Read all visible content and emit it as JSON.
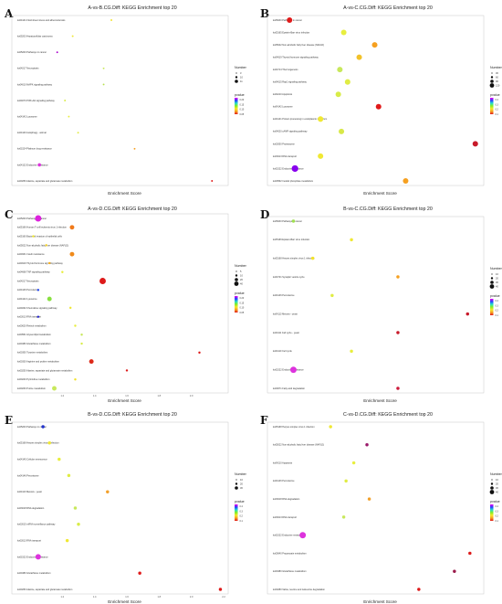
{
  "chart_data": [
    {
      "type": "scatter",
      "panel": "A",
      "title": "A-vs-B.CG.Diff: KEGG Enrichment top 20",
      "xlabel": "Enrichment Score",
      "xlim": [
        0.5,
        3.0
      ],
      "x_ticks": [],
      "legend": {
        "size_title": "Number",
        "size_values": [
          "3",
          "10",
          "11"
        ],
        "color_title": "pvalue",
        "color_ticks": [
          "0.20",
          "0.15",
          "0.10",
          "0.05"
        ]
      },
      "terms": [
        "ko04141 Fluid shear stress and atherosclerosis",
        "ko05203 Hepatocellular carcinoma",
        "ko05200 Pathways in cancer",
        "ko04217 Necroptosis",
        "ko04010 MAPK signaling pathway",
        "ko04070 PI3K-Akt signaling pathway",
        "ko04142 Lysosome",
        "ko04140 Autophagy - animal",
        "ko01524 Platinum drug resistance",
        "ko04122 Endocrine resistance",
        "ko00250 Alanine, aspartate and glutamate metabolism"
      ],
      "points": [
        {
          "x": 1.55,
          "size": 3,
          "color": "#f2e22a"
        },
        {
          "x": 1.05,
          "size": 3,
          "color": "#f0e833"
        },
        {
          "x": 0.85,
          "size": 3,
          "color": "#aa00cc"
        },
        {
          "x": 1.45,
          "size": 3,
          "color": "#c8e85c"
        },
        {
          "x": 1.45,
          "size": 3,
          "color": "#b6e04e"
        },
        {
          "x": 0.95,
          "size": 3,
          "color": "#d8ec48"
        },
        {
          "x": 1.0,
          "size": 3,
          "color": "#e8ee3e"
        },
        {
          "x": 1.12,
          "size": 3,
          "color": "#e0ec44"
        },
        {
          "x": 1.85,
          "size": 3,
          "color": "#f6a020"
        },
        {
          "x": 0.62,
          "size": 11,
          "color": "#dd33dd"
        },
        {
          "x": 2.85,
          "size": 3,
          "color": "#e11a1a"
        }
      ]
    },
    {
      "type": "scatter",
      "panel": "B",
      "title": "A-vs-C.CG.Diff: KEGG Enrichment top 20",
      "xlabel": "Enrichment Score",
      "xlim": [
        0.5,
        3.0
      ],
      "x_ticks": [],
      "legend": {
        "size_title": "Number",
        "size_values": [
          "30",
          "60",
          "90",
          "120"
        ],
        "color_title": "pvalue",
        "color_ticks": [
          "0.4",
          "0.3",
          "0.2",
          "0.1"
        ]
      },
      "terms": [
        "ko05200 Pathways in cancer",
        "ko05165 Epstein-Barr virus infection",
        "ko05022 Non-alcoholic fatty liver disease (NAFLD)",
        "ko04919 Thyroid hormone signaling pathway",
        "ko04714 Thermogenesis",
        "ko04015 Rap1 signaling pathway",
        "ko04210 Apoptosis",
        "ko04142 Lysosome",
        "ko04141 Protein processing in endoplasmic reticulum",
        "ko04020 cAMP signaling pathway",
        "ko03050 Proteasome",
        "ko03013 RNA transport",
        "ko01522 Endocrine resistance",
        "ko00562 Inositol phosphate metabolism"
      ],
      "points": [
        {
          "x": 0.55,
          "size": 30,
          "color": "#e01a1a"
        },
        {
          "x": 1.25,
          "size": 30,
          "color": "#e8ee3e"
        },
        {
          "x": 1.65,
          "size": 30,
          "color": "#f6a020"
        },
        {
          "x": 1.45,
          "size": 30,
          "color": "#f2c22a"
        },
        {
          "x": 1.2,
          "size": 30,
          "color": "#c8e85c"
        },
        {
          "x": 1.3,
          "size": 30,
          "color": "#e0ec44"
        },
        {
          "x": 1.18,
          "size": 30,
          "color": "#d8ec48"
        },
        {
          "x": 1.7,
          "size": 30,
          "color": "#e01a1a"
        },
        {
          "x": 0.95,
          "size": 30,
          "color": "#f0e833"
        },
        {
          "x": 1.22,
          "size": 30,
          "color": "#d8e848"
        },
        {
          "x": 2.95,
          "size": 30,
          "color": "#c81a2a"
        },
        {
          "x": 0.95,
          "size": 30,
          "color": "#f0e833"
        },
        {
          "x": 0.62,
          "size": 120,
          "color": "#8800ee"
        },
        {
          "x": 2.05,
          "size": 30,
          "color": "#f6a020"
        }
      ]
    },
    {
      "type": "scatter",
      "panel": "C",
      "title": "A-vs-D.CG.Diff: KEGG Enrichment top 20",
      "xlabel": "Enrichment Score",
      "xlim": [
        1.0,
        2.2
      ],
      "x_ticks": [
        "1.2",
        "1.4",
        "1.6",
        "1.8",
        "2.0"
      ],
      "legend": {
        "size_title": "Number",
        "size_values": [
          "5",
          "10",
          "20",
          "40"
        ],
        "color_title": "pvalue",
        "color_ticks": [
          "0.20",
          "0.15",
          "0.10",
          "0.05"
        ]
      },
      "terms": [
        "ko05200 Pathways in cancer",
        "ko05166 Human T-cell leukemia virus 1 infection",
        "ko05160 Bacterial invasion of epithelial cells",
        "ko05022 Non-alcoholic fatty liver disease (NAFLD)",
        "ko04931 Insulin resistance",
        "ko04919 Thyroid hormone signaling pathway",
        "ko04668 TNF signaling pathway",
        "ko04217 Necroptosis",
        "ko04146 Peroxisome",
        "ko04142 Lysosome",
        "ko04062 Chemokine signaling pathway",
        "ko03013 RNA transport",
        "ko00620 Retinol metabolism",
        "ko00561 Glycerolipid metabolism",
        "ko00480 Glutathione metabolism",
        "ko00350 Tyrosine metabolism",
        "ko00330 Arginine and proline metabolism",
        "ko00250 Alanine, aspartate and glutamate metabolism",
        "ko00240 Pyrimidine metabolism",
        "ko00230 Purine metabolism"
      ],
      "points": [
        {
          "x": 1.05,
          "size": 40,
          "color": "#dd22dd"
        },
        {
          "x": 1.26,
          "size": 20,
          "color": "#f07a1a"
        },
        {
          "x": 1.02,
          "size": 5,
          "color": "#f0e833"
        },
        {
          "x": 1.1,
          "size": 5,
          "color": "#f2d02a"
        },
        {
          "x": 1.26,
          "size": 20,
          "color": "#f08a1a"
        },
        {
          "x": 1.12,
          "size": 5,
          "color": "#f6b020"
        },
        {
          "x": 1.2,
          "size": 5,
          "color": "#e8ee3e"
        },
        {
          "x": 1.45,
          "size": 40,
          "color": "#dd1a1a"
        },
        {
          "x": 1.05,
          "size": 5,
          "color": "#2244ee"
        },
        {
          "x": 1.12,
          "size": 20,
          "color": "#88e040"
        },
        {
          "x": 1.25,
          "size": 5,
          "color": "#f0e833"
        },
        {
          "x": 1.05,
          "size": 5,
          "color": "#2222cc"
        },
        {
          "x": 1.28,
          "size": 5,
          "color": "#e8ee3e"
        },
        {
          "x": 1.32,
          "size": 5,
          "color": "#c8e85c"
        },
        {
          "x": 1.32,
          "size": 5,
          "color": "#d8ec48"
        },
        {
          "x": 2.05,
          "size": 5,
          "color": "#dd1a1a"
        },
        {
          "x": 1.38,
          "size": 20,
          "color": "#dd2a1a"
        },
        {
          "x": 1.6,
          "size": 5,
          "color": "#dd1a1a"
        },
        {
          "x": 1.28,
          "size": 5,
          "color": "#f2e22a"
        },
        {
          "x": 1.15,
          "size": 20,
          "color": "#c8e85c"
        }
      ]
    },
    {
      "type": "scatter",
      "panel": "D",
      "title": "B-vs-C.CG.Diff: KEGG Enrichment top 20",
      "xlabel": "Enrichment Score",
      "xlim": [
        0.5,
        3.0
      ],
      "x_ticks": [],
      "legend": {
        "size_title": "Number",
        "size_values": [
          "10",
          "20",
          "30",
          "40"
        ],
        "color_title": "pvalue",
        "color_ticks": [
          "0.4",
          "0.3",
          "0.2",
          "0.1"
        ]
      },
      "terms": [
        "ko05200 Pathways in cancer",
        "ko05169 Epstein-Barr virus infection",
        "ko05168 Herpes simplex virus 1 infection",
        "ko04721 Synaptic vesicle cycle",
        "ko04146 Peroxisome",
        "ko04113 Meiosis - yeast",
        "ko04111 Cell cycle - yeast",
        "ko04110 Cell cycle",
        "ko01522 Endocrine resistance",
        "ko00071 Fatty acid degradation"
      ],
      "points": [
        {
          "x": 0.6,
          "size": 10,
          "color": "#a0e050"
        },
        {
          "x": 1.35,
          "size": 10,
          "color": "#f0e833"
        },
        {
          "x": 0.85,
          "size": 10,
          "color": "#f2e22a"
        },
        {
          "x": 1.95,
          "size": 10,
          "color": "#f6a020"
        },
        {
          "x": 1.1,
          "size": 10,
          "color": "#e0ec44"
        },
        {
          "x": 2.85,
          "size": 10,
          "color": "#c81a2a"
        },
        {
          "x": 1.95,
          "size": 10,
          "color": "#c81a2a"
        },
        {
          "x": 1.35,
          "size": 10,
          "color": "#e8ee3e"
        },
        {
          "x": 0.6,
          "size": 40,
          "color": "#dd33dd"
        },
        {
          "x": 1.95,
          "size": 10,
          "color": "#cc1a3a"
        }
      ]
    },
    {
      "type": "scatter",
      "panel": "E",
      "title": "B-vs-D.CG.Diff: KEGG Enrichment top 20",
      "xlabel": "Enrichment Score",
      "xlim": [
        1.0,
        2.2
      ],
      "x_ticks": [
        "1.2",
        "1.4",
        "1.6",
        "1.8",
        "2.0",
        "2.2"
      ],
      "legend": {
        "size_title": "Number",
        "size_values": [
          "10",
          "20",
          "30"
        ],
        "color_title": "pvalue",
        "color_ticks": [
          "0.4",
          "0.3",
          "0.2",
          "0.1"
        ]
      },
      "terms": [
        "ko05200 Pathways in cancer",
        "ko05168 Herpes simplex virus 1 infection",
        "ko04145 Cellular senescence",
        "ko04146 Peroxisome",
        "ko04113 Meiosis - yeast",
        "ko03018 RNA degradation",
        "ko03015 mRNA surveillance pathway",
        "ko03013 RNA transport",
        "ko01522 Endocrine resistance",
        "ko00480 Glutathione metabolism",
        "ko00250 Alanine, aspartate and glutamate metabolism"
      ],
      "points": [
        {
          "x": 1.08,
          "size": 10,
          "color": "#2233cc"
        },
        {
          "x": 1.12,
          "size": 10,
          "color": "#f0e833"
        },
        {
          "x": 1.18,
          "size": 10,
          "color": "#e8ee3e"
        },
        {
          "x": 1.24,
          "size": 10,
          "color": "#e0ec44"
        },
        {
          "x": 1.48,
          "size": 10,
          "color": "#f2a02a"
        },
        {
          "x": 1.28,
          "size": 10,
          "color": "#c8e85c"
        },
        {
          "x": 1.3,
          "size": 10,
          "color": "#d8ec48"
        },
        {
          "x": 1.23,
          "size": 10,
          "color": "#f0e833"
        },
        {
          "x": 1.05,
          "size": 30,
          "color": "#dd33dd"
        },
        {
          "x": 1.68,
          "size": 10,
          "color": "#e01a1a"
        },
        {
          "x": 2.18,
          "size": 10,
          "color": "#dd1a1a"
        }
      ]
    },
    {
      "type": "scatter",
      "panel": "F",
      "title": "C-vs-D.CG.Diff: KEGG Enrichment top 20",
      "xlabel": "Enrichment Score",
      "xlim": [
        0.5,
        3.0
      ],
      "x_ticks": [],
      "legend": {
        "size_title": "Number",
        "size_values": [
          "10",
          "20",
          "30",
          "40"
        ],
        "color_title": "pvalue",
        "color_ticks": [
          "0.4",
          "0.3",
          "0.2",
          "0.1"
        ]
      },
      "terms": [
        "ko05168 Herpes simplex virus 1 infection",
        "ko05022 Non-alcoholic fatty liver disease (NAFLD)",
        "ko04210 Apoptosis",
        "ko04146 Peroxisome",
        "ko03018 RNA degradation",
        "ko03013 RNA transport",
        "ko01522 Endocrine resistance",
        "ko00640 Propanoate metabolism",
        "ko00480 Glutathione metabolism",
        "ko00280 Valine, leucine and isoleucine degradation"
      ],
      "points": [
        {
          "x": 1.08,
          "size": 10,
          "color": "#f0e833"
        },
        {
          "x": 1.55,
          "size": 10,
          "color": "#9a1a6a"
        },
        {
          "x": 1.38,
          "size": 10,
          "color": "#e8ee3e"
        },
        {
          "x": 1.28,
          "size": 10,
          "color": "#e0ec44"
        },
        {
          "x": 1.58,
          "size": 10,
          "color": "#f2a02a"
        },
        {
          "x": 1.25,
          "size": 10,
          "color": "#c8e85c"
        },
        {
          "x": 0.72,
          "size": 40,
          "color": "#dd33dd"
        },
        {
          "x": 2.88,
          "size": 10,
          "color": "#dd1a1a"
        },
        {
          "x": 2.68,
          "size": 10,
          "color": "#9a1a4a"
        },
        {
          "x": 2.22,
          "size": 10,
          "color": "#dd1a1a"
        }
      ]
    }
  ]
}
